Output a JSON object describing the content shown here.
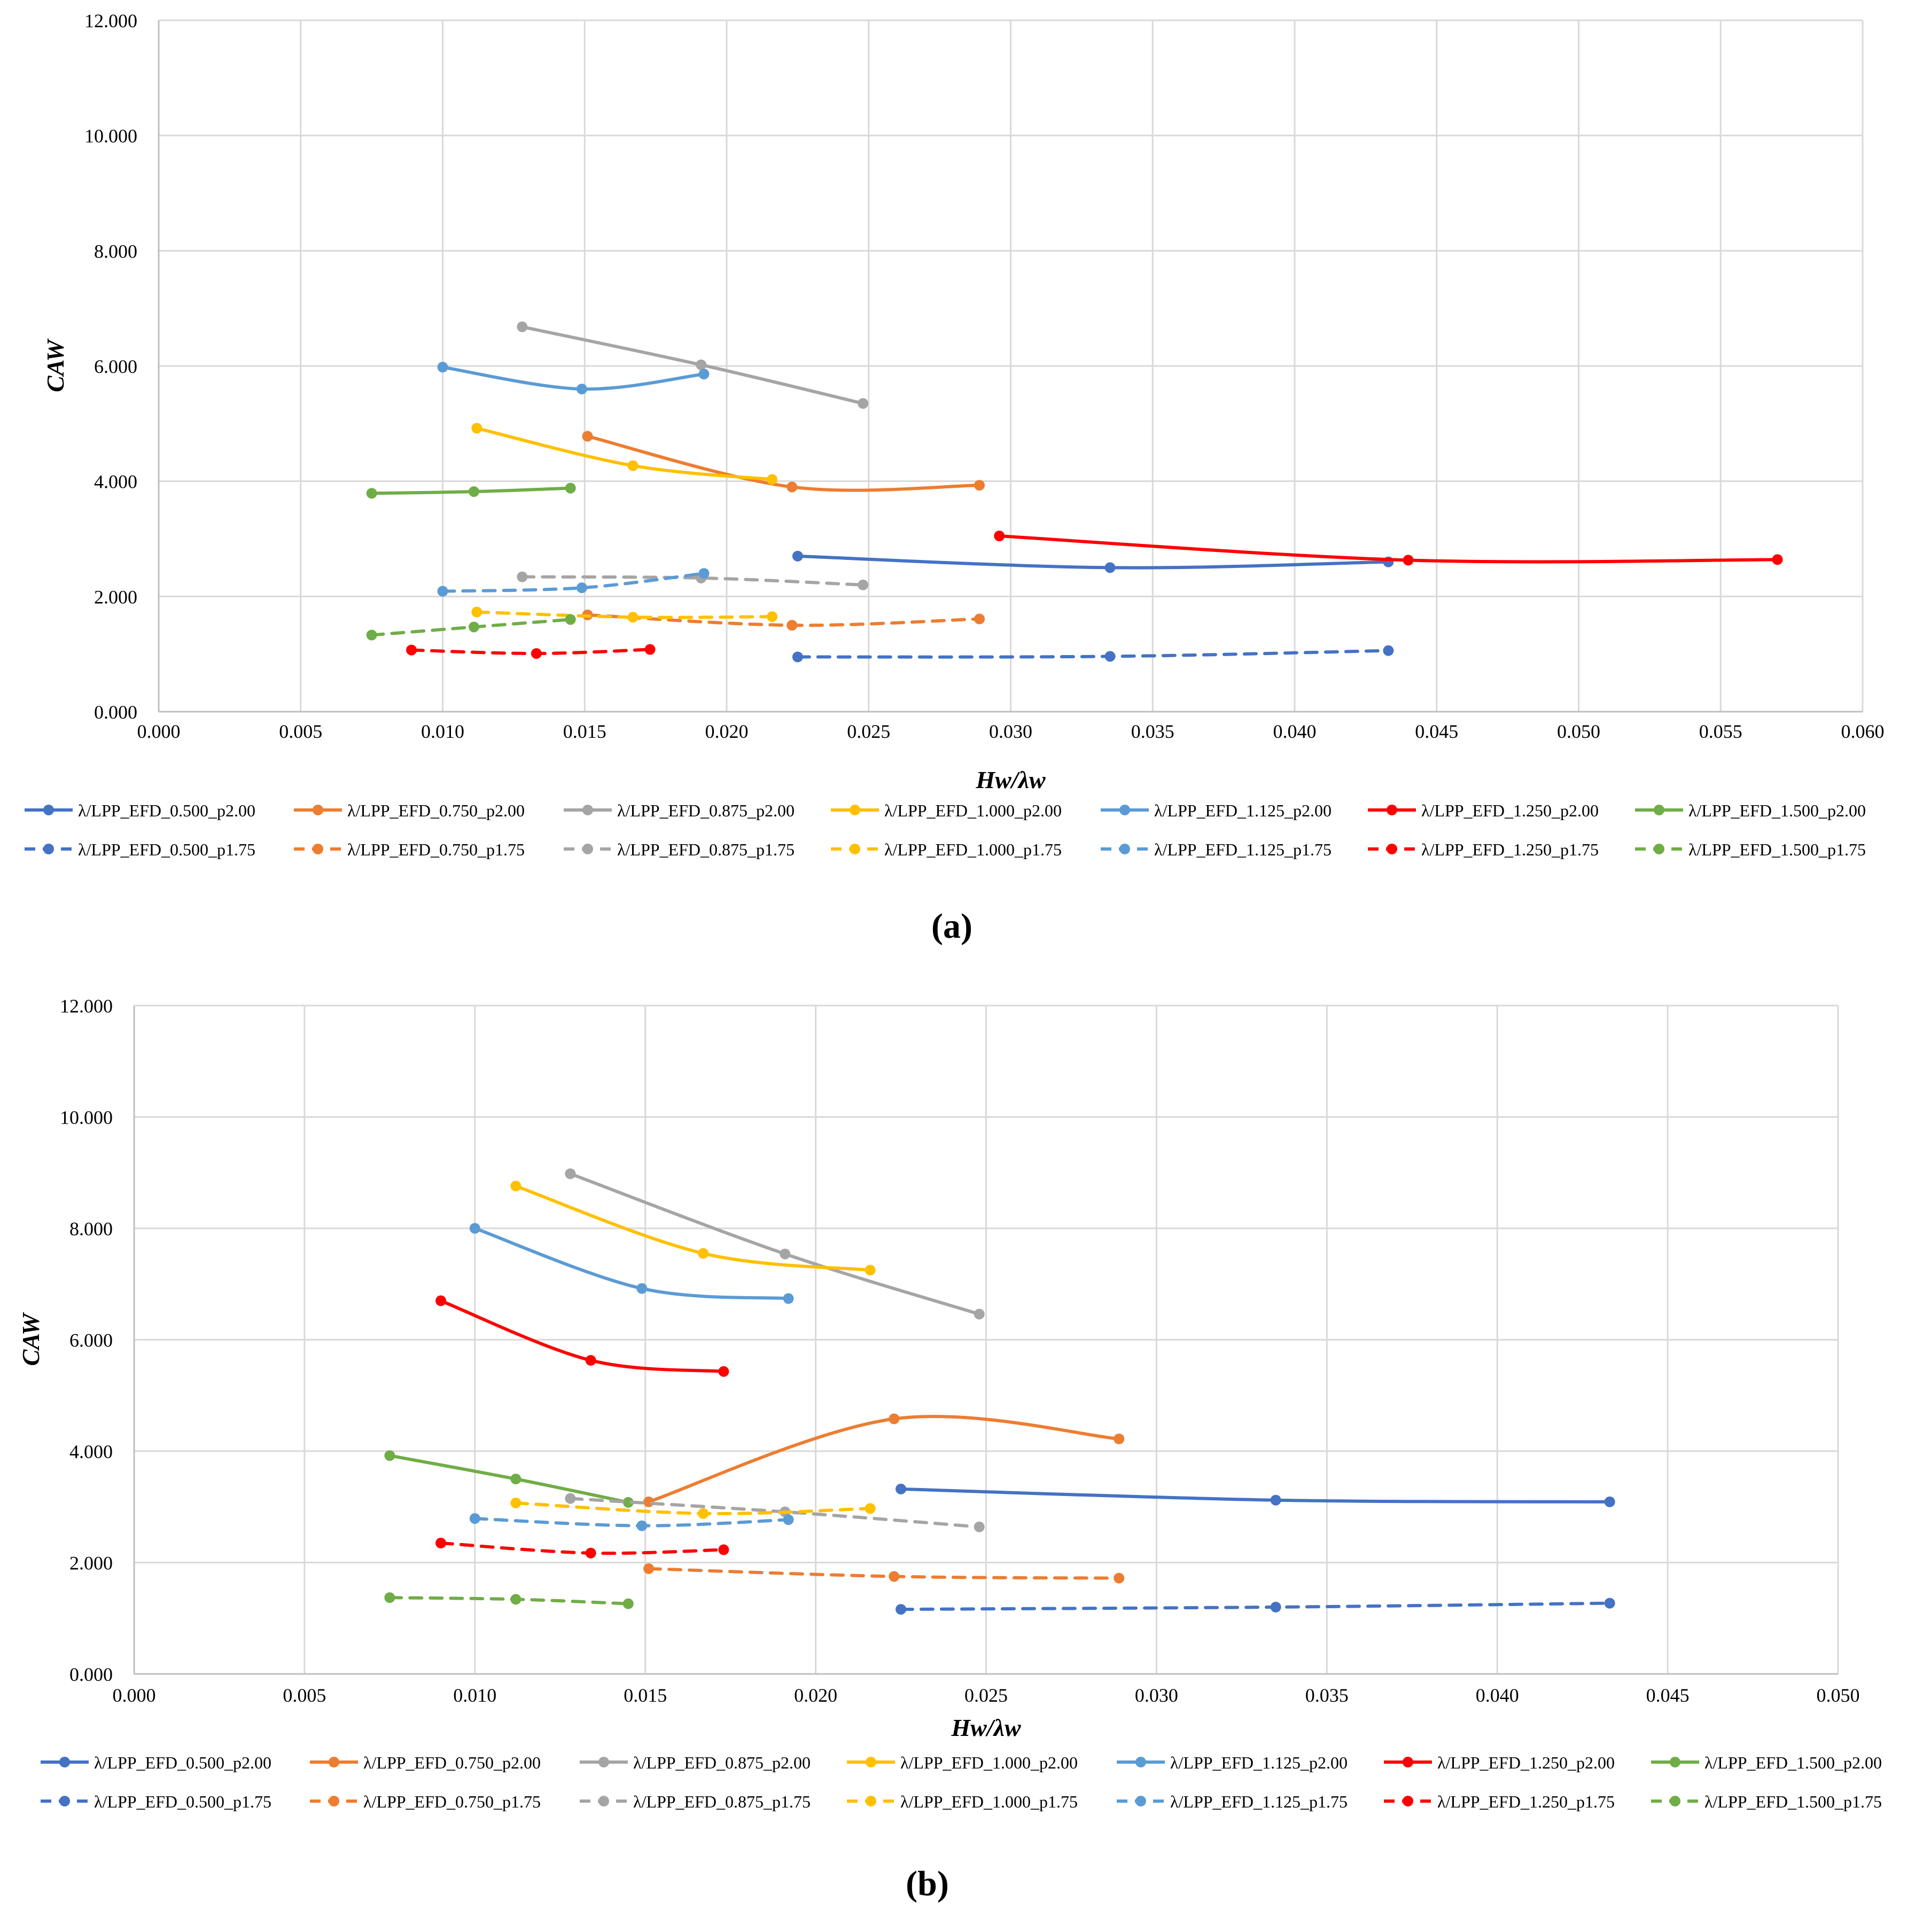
{
  "chart_data": [
    {
      "id": "a",
      "type": "line",
      "caption": "(a)",
      "xlabel": "Hw/λw",
      "ylabel": "CAW",
      "xlim": [
        0,
        0.06
      ],
      "ylim": [
        0,
        12
      ],
      "x_ticks": [
        "0.000",
        "0.005",
        "0.010",
        "0.015",
        "0.020",
        "0.025",
        "0.030",
        "0.035",
        "0.040",
        "0.045",
        "0.050",
        "0.055",
        "0.060"
      ],
      "y_ticks": [
        "0.000",
        "2.000",
        "4.000",
        "6.000",
        "8.000",
        "10.000",
        "12.000"
      ],
      "grid": true,
      "legend_position": "bottom",
      "series": [
        {
          "name": "λ/LPP_EFD_0.500_p2.00",
          "color": "#4472C4",
          "dash": false,
          "x": [
            0.0225,
            0.0335,
            0.0433
          ],
          "y": [
            2.7,
            2.5,
            2.6
          ]
        },
        {
          "name": "λ/LPP_EFD_0.750_p2.00",
          "color": "#ED7D31",
          "dash": false,
          "x": [
            0.0151,
            0.0223,
            0.0289
          ],
          "y": [
            4.78,
            3.9,
            3.93
          ]
        },
        {
          "name": "λ/LPP_EFD_0.875_p2.00",
          "color": "#A5A5A5",
          "dash": false,
          "x": [
            0.0128,
            0.0191,
            0.0248
          ],
          "y": [
            6.68,
            6.02,
            5.35
          ]
        },
        {
          "name": "λ/LPP_EFD_1.000_p2.00",
          "color": "#FFC000",
          "dash": false,
          "x": [
            0.0112,
            0.0167,
            0.0216
          ],
          "y": [
            4.92,
            4.27,
            4.03
          ]
        },
        {
          "name": "λ/LPP_EFD_1.125_p2.00",
          "color": "#5B9BD5",
          "dash": false,
          "x": [
            0.01,
            0.0149,
            0.0192
          ],
          "y": [
            5.98,
            5.6,
            5.86
          ]
        },
        {
          "name": "λ/LPP_EFD_1.250_p2.00",
          "color": "#FF0000",
          "dash": false,
          "x": [
            0.0296,
            0.044,
            0.057
          ],
          "y": [
            3.05,
            2.63,
            2.64
          ]
        },
        {
          "name": "λ/LPP_EFD_1.500_p2.00",
          "color": "#70AD47",
          "dash": false,
          "x": [
            0.0075,
            0.0111,
            0.0145
          ],
          "y": [
            3.79,
            3.82,
            3.88
          ]
        },
        {
          "name": "λ/LPP_EFD_0.500_p1.75",
          "color": "#4472C4",
          "dash": true,
          "x": [
            0.0225,
            0.0335,
            0.0433
          ],
          "y": [
            0.95,
            0.96,
            1.06
          ]
        },
        {
          "name": "λ/LPP_EFD_0.750_p1.75",
          "color": "#ED7D31",
          "dash": true,
          "x": [
            0.0151,
            0.0223,
            0.0289
          ],
          "y": [
            1.68,
            1.5,
            1.61
          ]
        },
        {
          "name": "λ/LPP_EFD_0.875_p1.75",
          "color": "#A5A5A5",
          "dash": true,
          "x": [
            0.0128,
            0.0191,
            0.0248
          ],
          "y": [
            2.34,
            2.32,
            2.2
          ]
        },
        {
          "name": "λ/LPP_EFD_1.000_p1.75",
          "color": "#FFC000",
          "dash": true,
          "x": [
            0.0112,
            0.0167,
            0.0216
          ],
          "y": [
            1.73,
            1.64,
            1.65
          ]
        },
        {
          "name": "λ/LPP_EFD_1.125_p1.75",
          "color": "#5B9BD5",
          "dash": true,
          "x": [
            0.01,
            0.0149,
            0.0192
          ],
          "y": [
            2.09,
            2.15,
            2.4
          ]
        },
        {
          "name": "λ/LPP_EFD_1.250_p1.75",
          "color": "#FF0000",
          "dash": true,
          "x": [
            0.0089,
            0.0133,
            0.0173
          ],
          "y": [
            1.07,
            1.01,
            1.08
          ]
        },
        {
          "name": "λ/LPP_EFD_1.500_p1.75",
          "color": "#70AD47",
          "dash": true,
          "x": [
            0.0075,
            0.0111,
            0.0145
          ],
          "y": [
            1.33,
            1.47,
            1.6
          ]
        }
      ]
    },
    {
      "id": "b",
      "type": "line",
      "caption": "(b)",
      "xlabel": "Hw/λw",
      "ylabel": "CAW",
      "xlim": [
        0,
        0.05
      ],
      "ylim": [
        0,
        12
      ],
      "x_ticks": [
        "0.000",
        "0.005",
        "0.010",
        "0.015",
        "0.020",
        "0.025",
        "0.030",
        "0.035",
        "0.040",
        "0.045",
        "0.050"
      ],
      "y_ticks": [
        "0.000",
        "2.000",
        "4.000",
        "6.000",
        "8.000",
        "10.000",
        "12.000"
      ],
      "grid": true,
      "legend_position": "bottom",
      "series": [
        {
          "name": "λ/LPP_EFD_0.500_p2.00",
          "color": "#4472C4",
          "dash": false,
          "x": [
            0.0225,
            0.0335,
            0.0433
          ],
          "y": [
            3.32,
            3.12,
            3.09
          ]
        },
        {
          "name": "λ/LPP_EFD_0.750_p2.00",
          "color": "#ED7D31",
          "dash": false,
          "x": [
            0.0151,
            0.0223,
            0.0289
          ],
          "y": [
            3.09,
            4.58,
            4.22
          ]
        },
        {
          "name": "λ/LPP_EFD_0.875_p2.00",
          "color": "#A5A5A5",
          "dash": false,
          "x": [
            0.0128,
            0.0191,
            0.0248
          ],
          "y": [
            8.98,
            7.54,
            6.46
          ]
        },
        {
          "name": "λ/LPP_EFD_1.000_p2.00",
          "color": "#FFC000",
          "dash": false,
          "x": [
            0.0112,
            0.0167,
            0.0216
          ],
          "y": [
            8.76,
            7.55,
            7.25
          ]
        },
        {
          "name": "λ/LPP_EFD_1.125_p2.00",
          "color": "#5B9BD5",
          "dash": false,
          "x": [
            0.01,
            0.0149,
            0.0192
          ],
          "y": [
            8.0,
            6.92,
            6.74
          ]
        },
        {
          "name": "λ/LPP_EFD_1.250_p2.00",
          "color": "#FF0000",
          "dash": false,
          "x": [
            0.009,
            0.0134,
            0.0173
          ],
          "y": [
            6.7,
            5.63,
            5.43
          ]
        },
        {
          "name": "λ/LPP_EFD_1.500_p2.00",
          "color": "#70AD47",
          "dash": false,
          "x": [
            0.0075,
            0.0112,
            0.0145
          ],
          "y": [
            3.92,
            3.5,
            3.08
          ]
        },
        {
          "name": "λ/LPP_EFD_0.500_p1.75",
          "color": "#4472C4",
          "dash": true,
          "x": [
            0.0225,
            0.0335,
            0.0433
          ],
          "y": [
            1.16,
            1.2,
            1.27
          ]
        },
        {
          "name": "λ/LPP_EFD_0.750_p1.75",
          "color": "#ED7D31",
          "dash": true,
          "x": [
            0.0151,
            0.0223,
            0.0289
          ],
          "y": [
            1.89,
            1.75,
            1.72
          ]
        },
        {
          "name": "λ/LPP_EFD_0.875_p1.75",
          "color": "#A5A5A5",
          "dash": true,
          "x": [
            0.0128,
            0.0191,
            0.0248
          ],
          "y": [
            3.15,
            2.91,
            2.64
          ]
        },
        {
          "name": "λ/LPP_EFD_1.000_p1.75",
          "color": "#FFC000",
          "dash": true,
          "x": [
            0.0112,
            0.0167,
            0.0216
          ],
          "y": [
            3.07,
            2.88,
            2.97
          ]
        },
        {
          "name": "λ/LPP_EFD_1.125_p1.75",
          "color": "#5B9BD5",
          "dash": true,
          "x": [
            0.01,
            0.0149,
            0.0192
          ],
          "y": [
            2.79,
            2.66,
            2.77
          ]
        },
        {
          "name": "λ/LPP_EFD_1.250_p1.75",
          "color": "#FF0000",
          "dash": true,
          "x": [
            0.009,
            0.0134,
            0.0173
          ],
          "y": [
            2.35,
            2.17,
            2.23
          ]
        },
        {
          "name": "λ/LPP_EFD_1.500_p1.75",
          "color": "#70AD47",
          "dash": true,
          "x": [
            0.0075,
            0.0112,
            0.0145
          ],
          "y": [
            1.37,
            1.34,
            1.26
          ]
        }
      ]
    }
  ]
}
